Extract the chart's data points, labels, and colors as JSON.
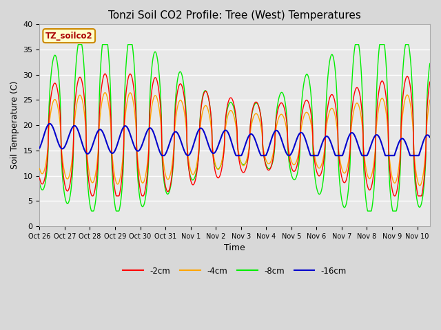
{
  "title": "Tonzi Soil CO2 Profile: Tree (West) Temperatures",
  "ylabel": "Soil Temperature (C)",
  "xlabel": "Time",
  "ylim": [
    0,
    40
  ],
  "yticks": [
    0,
    5,
    10,
    15,
    20,
    25,
    30,
    35,
    40
  ],
  "line_colors": [
    "#ff0000",
    "#ffa500",
    "#00ee00",
    "#0000cc"
  ],
  "line_labels": [
    "-2cm",
    "-4cm",
    "-8cm",
    "-16cm"
  ],
  "legend_label": "TZ_soilco2",
  "bg_color": "#e8e8e8",
  "grid_color": "#ffffff",
  "num_days": 15.5,
  "n_points": 1860,
  "x_tick_labels": [
    "Oct 26",
    "Oct 27",
    "Oct 28",
    "Oct 29",
    "Oct 30",
    "Oct 31",
    "Nov 1",
    "Nov 2",
    "Nov 3",
    "Nov 4",
    "Nov 5",
    "Nov 6",
    "Nov 7",
    "Nov 8",
    "Nov 9",
    "Nov 10"
  ],
  "x_tick_positions": [
    0,
    1,
    2,
    3,
    4,
    5,
    6,
    7,
    8,
    9,
    10,
    11,
    12,
    13,
    14,
    15
  ],
  "figsize": [
    6.4,
    4.8
  ],
  "dpi": 100
}
